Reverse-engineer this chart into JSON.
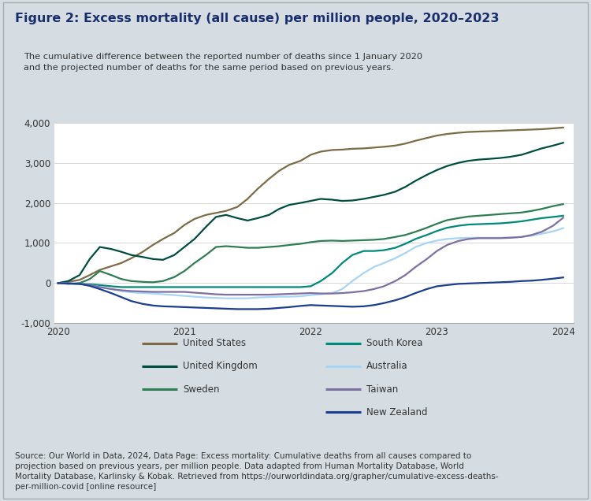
{
  "title": "Figure 2: Excess mortality (all cause) per million people, 2020–2023",
  "subtitle": "The cumulative difference between the reported number of deaths since 1 January 2020\nand the projected number of deaths for the same period based on previous years.",
  "source_text": "Source: Our World in Data, 2024, Data Page: Excess mortality: Cumulative deaths from all causes compared to\nprojection based on previous years, per million people. Data adapted from Human Mortality Database, World\nMortality Database, Karlinsky & Kobak. Retrieved from https://ourworldindata.org/grapher/cumulative-excess-deaths-\nper-million-covid [online resource]",
  "ylim": [
    -1000,
    4000
  ],
  "yticks": [
    -1000,
    0,
    1000,
    2000,
    3000,
    4000
  ],
  "xticks": [
    2020,
    2021,
    2022,
    2023,
    2024
  ],
  "background_color": "#d5dde3",
  "plot_bg_color": "#ffffff",
  "title_color": "#1a2e6e",
  "subtitle_color": "#333333",
  "source_color": "#333333",
  "source_link_color": "#1a56a0",
  "series": [
    {
      "name": "United States",
      "color": "#7d6b45",
      "linewidth": 1.6,
      "x": [
        2020.0,
        2020.08,
        2020.17,
        2020.25,
        2020.33,
        2020.42,
        2020.5,
        2020.58,
        2020.67,
        2020.75,
        2020.83,
        2020.92,
        2021.0,
        2021.08,
        2021.17,
        2021.25,
        2021.33,
        2021.42,
        2021.5,
        2021.58,
        2021.67,
        2021.75,
        2021.83,
        2021.92,
        2022.0,
        2022.08,
        2022.17,
        2022.25,
        2022.33,
        2022.42,
        2022.5,
        2022.58,
        2022.67,
        2022.75,
        2022.83,
        2022.92,
        2023.0,
        2023.08,
        2023.17,
        2023.25,
        2023.33,
        2023.42,
        2023.5,
        2023.58,
        2023.67,
        2023.75,
        2023.83,
        2023.92,
        2024.0
      ],
      "y": [
        0,
        30,
        80,
        200,
        330,
        420,
        500,
        620,
        780,
        950,
        1100,
        1250,
        1450,
        1600,
        1700,
        1750,
        1800,
        1900,
        2100,
        2350,
        2600,
        2800,
        2950,
        3050,
        3200,
        3280,
        3320,
        3330,
        3350,
        3360,
        3380,
        3400,
        3430,
        3480,
        3550,
        3620,
        3680,
        3720,
        3750,
        3770,
        3780,
        3790,
        3800,
        3810,
        3820,
        3830,
        3840,
        3860,
        3880
      ]
    },
    {
      "name": "United Kingdom",
      "color": "#004d40",
      "linewidth": 1.6,
      "x": [
        2020.0,
        2020.08,
        2020.17,
        2020.25,
        2020.33,
        2020.42,
        2020.5,
        2020.58,
        2020.67,
        2020.75,
        2020.83,
        2020.92,
        2021.0,
        2021.08,
        2021.17,
        2021.25,
        2021.33,
        2021.42,
        2021.5,
        2021.58,
        2021.67,
        2021.75,
        2021.83,
        2021.92,
        2022.0,
        2022.08,
        2022.17,
        2022.25,
        2022.33,
        2022.42,
        2022.5,
        2022.58,
        2022.67,
        2022.75,
        2022.83,
        2022.92,
        2023.0,
        2023.08,
        2023.17,
        2023.25,
        2023.33,
        2023.42,
        2023.5,
        2023.58,
        2023.67,
        2023.75,
        2023.83,
        2023.92,
        2024.0
      ],
      "y": [
        0,
        50,
        200,
        600,
        900,
        850,
        780,
        700,
        650,
        600,
        580,
        700,
        900,
        1100,
        1400,
        1650,
        1700,
        1620,
        1560,
        1620,
        1700,
        1850,
        1950,
        2000,
        2050,
        2100,
        2080,
        2050,
        2060,
        2100,
        2150,
        2200,
        2280,
        2400,
        2550,
        2700,
        2820,
        2920,
        3000,
        3050,
        3080,
        3100,
        3120,
        3150,
        3200,
        3280,
        3360,
        3430,
        3500
      ]
    },
    {
      "name": "Sweden",
      "color": "#2e7d52",
      "linewidth": 1.6,
      "x": [
        2020.0,
        2020.08,
        2020.17,
        2020.25,
        2020.33,
        2020.42,
        2020.5,
        2020.58,
        2020.67,
        2020.75,
        2020.83,
        2020.92,
        2021.0,
        2021.08,
        2021.17,
        2021.25,
        2021.33,
        2021.42,
        2021.5,
        2021.58,
        2021.67,
        2021.75,
        2021.83,
        2021.92,
        2022.0,
        2022.08,
        2022.17,
        2022.25,
        2022.33,
        2022.42,
        2022.5,
        2022.58,
        2022.67,
        2022.75,
        2022.83,
        2022.92,
        2023.0,
        2023.08,
        2023.17,
        2023.25,
        2023.33,
        2023.42,
        2023.5,
        2023.58,
        2023.67,
        2023.75,
        2023.83,
        2023.92,
        2024.0
      ],
      "y": [
        0,
        -20,
        0,
        100,
        300,
        200,
        100,
        50,
        30,
        20,
        50,
        150,
        300,
        500,
        700,
        900,
        920,
        900,
        880,
        880,
        900,
        920,
        950,
        980,
        1020,
        1050,
        1060,
        1050,
        1060,
        1070,
        1080,
        1100,
        1150,
        1200,
        1280,
        1380,
        1480,
        1570,
        1620,
        1660,
        1680,
        1700,
        1720,
        1740,
        1760,
        1800,
        1850,
        1920,
        1970
      ]
    },
    {
      "name": "South Korea",
      "color": "#00897b",
      "linewidth": 1.6,
      "x": [
        2020.0,
        2020.08,
        2020.17,
        2020.25,
        2020.33,
        2020.42,
        2020.5,
        2020.58,
        2020.67,
        2020.75,
        2020.83,
        2020.92,
        2021.0,
        2021.08,
        2021.17,
        2021.25,
        2021.33,
        2021.42,
        2021.5,
        2021.58,
        2021.67,
        2021.75,
        2021.83,
        2021.92,
        2022.0,
        2022.08,
        2022.17,
        2022.25,
        2022.33,
        2022.42,
        2022.5,
        2022.58,
        2022.67,
        2022.75,
        2022.83,
        2022.92,
        2023.0,
        2023.08,
        2023.17,
        2023.25,
        2023.33,
        2023.42,
        2023.5,
        2023.58,
        2023.67,
        2023.75,
        2023.83,
        2023.92,
        2024.0
      ],
      "y": [
        0,
        -10,
        -20,
        -30,
        -50,
        -80,
        -100,
        -100,
        -100,
        -100,
        -100,
        -100,
        -100,
        -100,
        -100,
        -100,
        -100,
        -100,
        -100,
        -100,
        -100,
        -100,
        -100,
        -100,
        -80,
        50,
        250,
        500,
        700,
        800,
        800,
        820,
        880,
        980,
        1100,
        1200,
        1300,
        1380,
        1430,
        1460,
        1470,
        1480,
        1490,
        1510,
        1540,
        1580,
        1620,
        1650,
        1680
      ]
    },
    {
      "name": "Australia",
      "color": "#a8d4f5",
      "linewidth": 1.6,
      "x": [
        2020.0,
        2020.08,
        2020.17,
        2020.25,
        2020.33,
        2020.42,
        2020.5,
        2020.58,
        2020.67,
        2020.75,
        2020.83,
        2020.92,
        2021.0,
        2021.08,
        2021.17,
        2021.25,
        2021.33,
        2021.42,
        2021.5,
        2021.58,
        2021.67,
        2021.75,
        2021.83,
        2021.92,
        2022.0,
        2022.08,
        2022.17,
        2022.25,
        2022.33,
        2022.42,
        2022.5,
        2022.58,
        2022.67,
        2022.75,
        2022.83,
        2022.92,
        2023.0,
        2023.08,
        2023.17,
        2023.25,
        2023.33,
        2023.42,
        2023.5,
        2023.58,
        2023.67,
        2023.75,
        2023.83,
        2023.92,
        2024.0
      ],
      "y": [
        0,
        -10,
        -20,
        -50,
        -100,
        -150,
        -200,
        -230,
        -250,
        -260,
        -280,
        -300,
        -320,
        -340,
        -360,
        -370,
        -380,
        -380,
        -380,
        -360,
        -350,
        -340,
        -340,
        -330,
        -300,
        -280,
        -250,
        -150,
        50,
        250,
        400,
        500,
        620,
        750,
        900,
        1000,
        1060,
        1100,
        1120,
        1130,
        1130,
        1130,
        1130,
        1140,
        1150,
        1180,
        1230,
        1290,
        1370
      ]
    },
    {
      "name": "Taiwan",
      "color": "#7e6fa3",
      "linewidth": 1.6,
      "x": [
        2020.0,
        2020.08,
        2020.17,
        2020.25,
        2020.33,
        2020.42,
        2020.5,
        2020.58,
        2020.67,
        2020.75,
        2020.83,
        2020.92,
        2021.0,
        2021.08,
        2021.17,
        2021.25,
        2021.33,
        2021.42,
        2021.5,
        2021.58,
        2021.67,
        2021.75,
        2021.83,
        2021.92,
        2022.0,
        2022.08,
        2022.17,
        2022.25,
        2022.33,
        2022.42,
        2022.5,
        2022.58,
        2022.67,
        2022.75,
        2022.83,
        2022.92,
        2023.0,
        2023.08,
        2023.17,
        2023.25,
        2023.33,
        2023.42,
        2023.5,
        2023.58,
        2023.67,
        2023.75,
        2023.83,
        2023.92,
        2024.0
      ],
      "y": [
        0,
        -10,
        -20,
        -50,
        -100,
        -150,
        -180,
        -200,
        -210,
        -220,
        -220,
        -220,
        -220,
        -240,
        -260,
        -280,
        -290,
        -290,
        -290,
        -290,
        -290,
        -280,
        -270,
        -260,
        -250,
        -260,
        -260,
        -250,
        -230,
        -200,
        -150,
        -80,
        50,
        200,
        400,
        600,
        800,
        950,
        1050,
        1100,
        1120,
        1120,
        1120,
        1130,
        1150,
        1200,
        1280,
        1430,
        1630
      ]
    },
    {
      "name": "New Zealand",
      "color": "#1a3d8f",
      "linewidth": 1.6,
      "x": [
        2020.0,
        2020.08,
        2020.17,
        2020.25,
        2020.33,
        2020.42,
        2020.5,
        2020.58,
        2020.67,
        2020.75,
        2020.83,
        2020.92,
        2021.0,
        2021.08,
        2021.17,
        2021.25,
        2021.33,
        2021.42,
        2021.5,
        2021.58,
        2021.67,
        2021.75,
        2021.83,
        2021.92,
        2022.0,
        2022.08,
        2022.17,
        2022.25,
        2022.33,
        2022.42,
        2022.5,
        2022.58,
        2022.67,
        2022.75,
        2022.83,
        2022.92,
        2023.0,
        2023.08,
        2023.17,
        2023.25,
        2023.33,
        2023.42,
        2023.5,
        2023.58,
        2023.67,
        2023.75,
        2023.83,
        2023.92,
        2024.0
      ],
      "y": [
        0,
        -10,
        -20,
        -70,
        -150,
        -250,
        -350,
        -450,
        -520,
        -560,
        -580,
        -590,
        -600,
        -610,
        -620,
        -630,
        -640,
        -650,
        -650,
        -650,
        -640,
        -620,
        -600,
        -570,
        -550,
        -560,
        -570,
        -580,
        -590,
        -580,
        -550,
        -500,
        -430,
        -350,
        -250,
        -150,
        -80,
        -50,
        -20,
        -10,
        0,
        10,
        20,
        30,
        50,
        60,
        80,
        110,
        140
      ]
    }
  ],
  "legend_items_col1": [
    "United States",
    "United Kingdom",
    "Sweden"
  ],
  "legend_items_col2": [
    "South Korea",
    "Australia",
    "Taiwan",
    "New Zealand"
  ]
}
